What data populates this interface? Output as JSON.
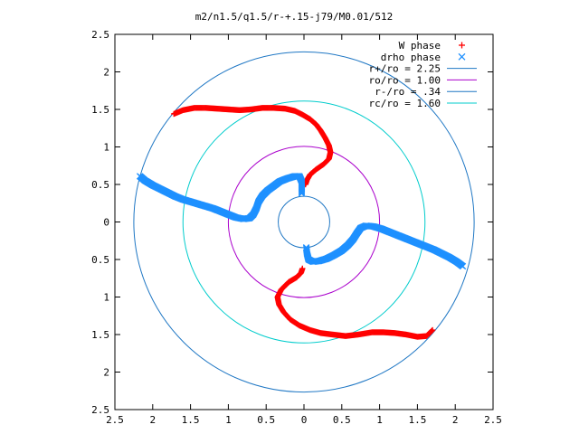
{
  "chart_data": {
    "type": "scatter",
    "title": "m2/n1.5/q1.5/r-+.15-j79/M0.01/512",
    "xlabel": "",
    "ylabel": "",
    "xlim": [
      -2.5,
      2.5
    ],
    "ylim": [
      -2.5,
      2.5
    ],
    "x_tick_values": [
      -2.5,
      -2,
      -1.5,
      -1,
      -0.5,
      0,
      0.5,
      1,
      1.5,
      2,
      2.5
    ],
    "x_tick_labels": [
      "2.5",
      "2",
      "1.5",
      "1",
      "0.5",
      "0",
      "0.5",
      "1",
      "1.5",
      "2",
      "2.5"
    ],
    "y_tick_values": [
      2.5,
      2,
      1.5,
      1,
      0.5,
      0,
      -0.5,
      -1,
      -1.5,
      -2,
      -2.5
    ],
    "y_tick_labels": [
      "2.5",
      "2",
      "1.5",
      "1",
      "0.5",
      "0",
      "0.5",
      "1",
      "1.5",
      "2",
      "2.5"
    ],
    "grid": false,
    "legend_position": "top-right",
    "series": [
      {
        "name": "W phase",
        "marker": "plus",
        "color": "#ff0000",
        "points": [
          [
            -1.72,
            1.44
          ],
          [
            -1.6,
            1.49
          ],
          [
            -1.45,
            1.52
          ],
          [
            -1.3,
            1.52
          ],
          [
            -1.15,
            1.51
          ],
          [
            -1.0,
            1.5
          ],
          [
            -0.85,
            1.49
          ],
          [
            -0.7,
            1.5
          ],
          [
            -0.55,
            1.52
          ],
          [
            -0.4,
            1.52
          ],
          [
            -0.25,
            1.51
          ],
          [
            -0.12,
            1.48
          ],
          [
            -0.02,
            1.43
          ],
          [
            0.08,
            1.37
          ],
          [
            0.16,
            1.3
          ],
          [
            0.22,
            1.22
          ],
          [
            0.28,
            1.12
          ],
          [
            0.33,
            1.02
          ],
          [
            0.35,
            0.93
          ],
          [
            0.33,
            0.84
          ],
          [
            0.26,
            0.77
          ],
          [
            0.16,
            0.7
          ],
          [
            0.08,
            0.63
          ],
          [
            0.04,
            0.56
          ],
          [
            0.02,
            0.5
          ],
          [
            -0.02,
            -0.62
          ],
          [
            -0.04,
            -0.68
          ],
          [
            -0.1,
            -0.74
          ],
          [
            -0.2,
            -0.8
          ],
          [
            -0.3,
            -0.9
          ],
          [
            -0.35,
            -1.0
          ],
          [
            -0.33,
            -1.1
          ],
          [
            -0.27,
            -1.2
          ],
          [
            -0.18,
            -1.3
          ],
          [
            -0.06,
            -1.38
          ],
          [
            0.08,
            -1.44
          ],
          [
            0.22,
            -1.48
          ],
          [
            0.38,
            -1.5
          ],
          [
            0.55,
            -1.52
          ],
          [
            0.72,
            -1.5
          ],
          [
            0.9,
            -1.47
          ],
          [
            1.05,
            -1.47
          ],
          [
            1.2,
            -1.48
          ],
          [
            1.35,
            -1.5
          ],
          [
            1.5,
            -1.53
          ],
          [
            1.62,
            -1.52
          ],
          [
            1.7,
            -1.44
          ]
        ]
      },
      {
        "name": "drho phase",
        "marker": "cross",
        "color": "#1e90ff",
        "points": [
          [
            -2.17,
            0.61
          ],
          [
            -2.1,
            0.55
          ],
          [
            -2.0,
            0.49
          ],
          [
            -1.9,
            0.44
          ],
          [
            -1.8,
            0.39
          ],
          [
            -1.7,
            0.34
          ],
          [
            -1.6,
            0.3
          ],
          [
            -1.5,
            0.27
          ],
          [
            -1.4,
            0.24
          ],
          [
            -1.3,
            0.21
          ],
          [
            -1.2,
            0.18
          ],
          [
            -1.1,
            0.14
          ],
          [
            -1.0,
            0.1
          ],
          [
            -0.9,
            0.06
          ],
          [
            -0.8,
            0.04
          ],
          [
            -0.72,
            0.05
          ],
          [
            -0.67,
            0.1
          ],
          [
            -0.63,
            0.18
          ],
          [
            -0.6,
            0.27
          ],
          [
            -0.55,
            0.35
          ],
          [
            -0.48,
            0.42
          ],
          [
            -0.4,
            0.48
          ],
          [
            -0.32,
            0.54
          ],
          [
            -0.22,
            0.58
          ],
          [
            -0.12,
            0.61
          ],
          [
            -0.06,
            0.61
          ],
          [
            -0.03,
            0.54
          ],
          [
            -0.03,
            0.46
          ],
          [
            -0.03,
            0.38
          ],
          [
            2.1,
            -0.59
          ],
          [
            2.02,
            -0.53
          ],
          [
            1.92,
            -0.47
          ],
          [
            1.82,
            -0.42
          ],
          [
            1.72,
            -0.37
          ],
          [
            1.62,
            -0.33
          ],
          [
            1.52,
            -0.29
          ],
          [
            1.42,
            -0.25
          ],
          [
            1.32,
            -0.21
          ],
          [
            1.22,
            -0.17
          ],
          [
            1.12,
            -0.13
          ],
          [
            1.02,
            -0.09
          ],
          [
            0.92,
            -0.06
          ],
          [
            0.82,
            -0.05
          ],
          [
            0.75,
            -0.08
          ],
          [
            0.7,
            -0.15
          ],
          [
            0.65,
            -0.23
          ],
          [
            0.58,
            -0.31
          ],
          [
            0.5,
            -0.38
          ],
          [
            0.4,
            -0.44
          ],
          [
            0.3,
            -0.49
          ],
          [
            0.2,
            -0.52
          ],
          [
            0.12,
            -0.53
          ],
          [
            0.06,
            -0.5
          ],
          [
            0.04,
            -0.42
          ],
          [
            0.03,
            -0.34
          ]
        ]
      },
      {
        "name": "r+/ro = 2.25",
        "type": "circle",
        "radius": 2.25,
        "color": "#1f77c4"
      },
      {
        "name": "ro/ro = 1.00",
        "type": "circle",
        "radius": 1.0,
        "color": "#aa00cc"
      },
      {
        "name": "r-/ro = .34",
        "type": "circle",
        "radius": 0.34,
        "color": "#1f77c4"
      },
      {
        "name": "rc/ro = 1.60",
        "type": "circle",
        "radius": 1.6,
        "color": "#00cccc"
      }
    ]
  }
}
